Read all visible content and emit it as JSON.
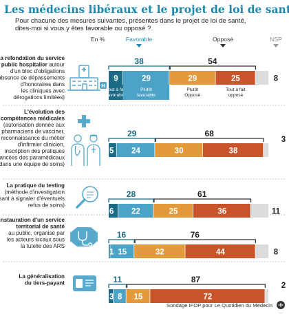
{
  "title": "Les médecins libéraux et le projet de loi de santé",
  "subtitle": [
    "Pour chacune des mesures suivantes, présentes dans le projet de loi de santé,",
    "dites-moi si vous y êtes favorable ou opposé ?"
  ],
  "header": {
    "unit": "En %",
    "favorable": "Favorable",
    "oppose": "Opposé",
    "nsp": "NSP"
  },
  "segment_captions": [
    [
      "Tout à fait",
      "favorable"
    ],
    [
      "Plutôt",
      "favorable"
    ],
    [
      "Plutôt",
      "Opposé"
    ],
    [
      "Tout à fait",
      "opposé"
    ]
  ],
  "rows": [
    {
      "label_bold": [
        "La refondation du service",
        "public hospitalier"
      ],
      "label_rest": "autour d'un bloc d'obligations (absence de dépassements d'honoraires dans les cliniques avec dérogations limitées)",
      "label_lines": [
        [
          [
            "b",
            "La refondation du service"
          ]
        ],
        [
          [
            "b",
            "public hospitalier"
          ],
          [
            "n",
            " autour"
          ]
        ],
        [
          [
            "n",
            "d'un bloc d'obligations"
          ]
        ],
        [
          [
            "n",
            "(absence de dépassements"
          ]
        ],
        [
          [
            "n",
            "d'honoraires dans"
          ]
        ],
        [
          [
            "n",
            "les cliniques avec"
          ]
        ],
        [
          [
            "n",
            "dérogations limitées)"
          ]
        ]
      ]
    },
    {
      "label_lines": [
        [
          [
            "b",
            "L'évolution des"
          ]
        ],
        [
          [
            "b",
            "compétences médicales"
          ]
        ],
        [
          [
            "n",
            "(autorisation donnée aux"
          ]
        ],
        [
          [
            "n",
            "pharmaciens de vacciner,"
          ]
        ],
        [
          [
            "n",
            "reconnaissance du métier"
          ]
        ],
        [
          [
            "n",
            "d'infirmier clinicien,"
          ]
        ],
        [
          [
            "n",
            "inscription des pratiques"
          ]
        ],
        [
          [
            "n",
            "avancées des paramédicaux"
          ]
        ],
        [
          [
            "n",
            "dans une équipe de soins)"
          ]
        ]
      ]
    },
    {
      "label_lines": [
        [
          [
            "b",
            "La pratique du testing"
          ]
        ],
        [
          [
            "n",
            "(méthode d'investigation"
          ]
        ],
        [
          [
            "n",
            "visant à signaler d'éventuels"
          ]
        ],
        [
          [
            "n",
            "refus de soins)"
          ]
        ]
      ]
    },
    {
      "label_lines": [
        [
          [
            "b",
            "L'instauration d'un service"
          ]
        ],
        [
          [
            "b",
            "territorial de santé"
          ]
        ],
        [
          [
            "n",
            "au public, organisé par"
          ]
        ],
        [
          [
            "n",
            "les acteurs locaux sous"
          ]
        ],
        [
          [
            "n",
            "la tutelle des ARS"
          ]
        ]
      ]
    },
    {
      "label_lines": [
        [
          [
            "b",
            "La généralisation"
          ]
        ],
        [
          [
            "b",
            "du tiers-payant"
          ]
        ]
      ]
    }
  ],
  "chart_data": {
    "type": "bar",
    "orientation": "horizontal",
    "stacked": true,
    "title": "Les médecins libéraux et le projet de loi de santé",
    "unit": "En %",
    "categories": [
      "La refondation du service public hospitalier",
      "L'évolution des compétences médicales",
      "La pratique du testing",
      "L'instauration d'un service territorial de santé",
      "La généralisation du tiers-payant"
    ],
    "series": [
      {
        "name": "Tout à fait favorable",
        "values": [
          9,
          5,
          6,
          1,
          3
        ]
      },
      {
        "name": "Plutôt favorable",
        "values": [
          29,
          24,
          22,
          15,
          8
        ]
      },
      {
        "name": "Plutôt Opposé",
        "values": [
          29,
          30,
          25,
          32,
          15
        ]
      },
      {
        "name": "Tout à fait opposé",
        "values": [
          25,
          38,
          36,
          44,
          72
        ]
      },
      {
        "name": "NSP",
        "values": [
          8,
          3,
          11,
          8,
          2
        ]
      }
    ],
    "totals": {
      "favorable": [
        38,
        29,
        28,
        16,
        11
      ],
      "oppose": [
        54,
        68,
        61,
        76,
        87
      ]
    },
    "xlim": [
      0,
      100
    ],
    "legend": "top",
    "grid": false
  },
  "source": "Sondage IFOP pour Le Quotidien du Médecin",
  "colors": {
    "title": "#1e88ad",
    "dark_blue": "#1b6a86",
    "light_blue": "#4ba3c7",
    "orange": "#e29a3a",
    "red": "#c9542a",
    "nsp": "#dcdcdc",
    "icon": "#58a9cc",
    "separator": "#9fb6c4"
  },
  "icons": [
    "hospital-icon",
    "medical-cross-icon",
    "doctor-nurse-icon",
    "magnifier-icon",
    "stethoscope-icon",
    "health-card-icon"
  ]
}
